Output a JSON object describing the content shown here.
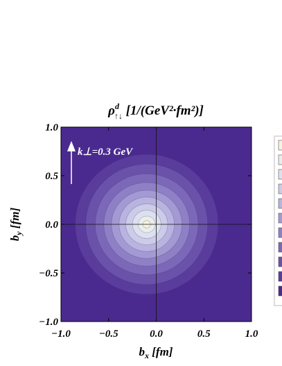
{
  "chart_data": {
    "type": "contour",
    "title": {
      "symbol": "ρ",
      "superscript": "d",
      "subscript": "↑↓",
      "rest": " [1/(GeV²·fm²)]"
    },
    "x_label": {
      "symbol": "b",
      "subscript": "x",
      "rest": " [fm]"
    },
    "y_label": {
      "symbol": "b",
      "subscript": "y",
      "rest": " [fm]"
    },
    "annotation": "k⊥=0.3 GeV",
    "xlim": [
      -1,
      1
    ],
    "ylim": [
      -1,
      1
    ],
    "xticks": [
      {
        "value": -1,
        "label": "−1.0"
      },
      {
        "value": -0.5,
        "label": "−0.5"
      },
      {
        "value": 0,
        "label": "0.0"
      },
      0.5,
      {
        "value": 1,
        "label": "1.0"
      }
    ],
    "yticks": [
      {
        "value": -1,
        "label": "−1.0"
      },
      {
        "value": -0.5,
        "label": "−0.5"
      },
      {
        "value": 0,
        "label": "0.0"
      },
      0.5,
      {
        "value": 1,
        "label": "1.0"
      }
    ],
    "center": {
      "x": -0.1,
      "y": 0
    },
    "colors": [
      "#4b2a8f",
      "#5a3c9c",
      "#6a52aa",
      "#7c68b8",
      "#8f80c6",
      "#a49ad3",
      "#b8b3df",
      "#cccbe8",
      "#dde1ee",
      "#eaeeea",
      "#f6f3dc"
    ],
    "contours": [
      {
        "rx": 0.75,
        "ry": 0.72
      },
      {
        "rx": 0.64,
        "ry": 0.62
      },
      {
        "rx": 0.54,
        "ry": 0.52
      },
      {
        "rx": 0.45,
        "ry": 0.43
      },
      {
        "rx": 0.37,
        "ry": 0.35
      },
      {
        "rx": 0.29,
        "ry": 0.28
      },
      {
        "rx": 0.22,
        "ry": 0.21
      },
      {
        "rx": 0.15,
        "ry": 0.145
      },
      {
        "rx": 0.09,
        "ry": 0.085
      },
      {
        "rx": 0.04,
        "ry": 0.038
      }
    ]
  }
}
